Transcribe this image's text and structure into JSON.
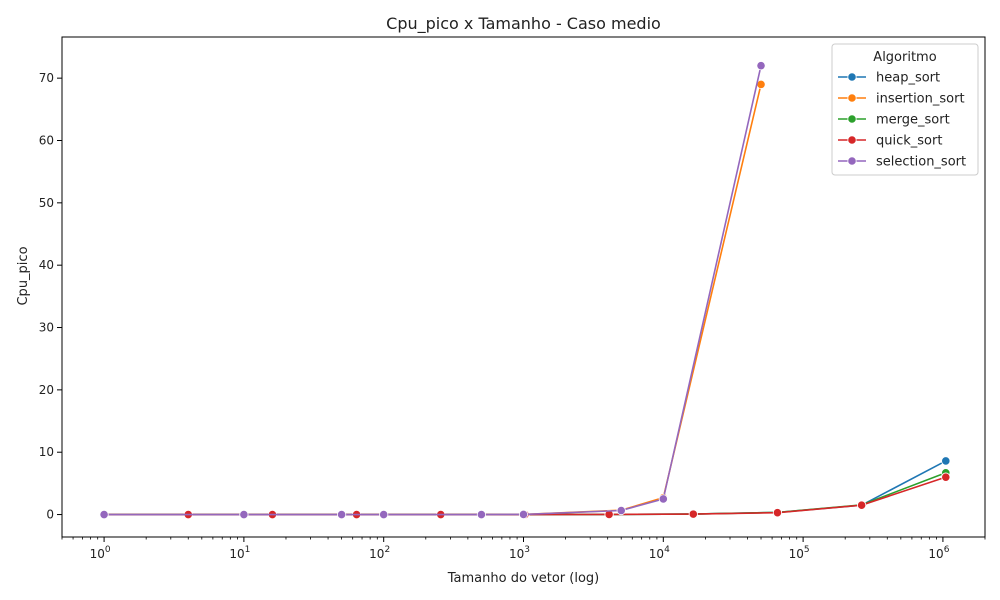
{
  "chart_data": {
    "type": "line",
    "title": "Cpu_pico x Tamanho - Caso medio",
    "xlabel": "Tamanho do vetor (log)",
    "ylabel": "Cpu_pico",
    "x_scale": "log",
    "xlim": [
      0.5,
      2000000
    ],
    "ylim": [
      -3.6,
      76.6
    ],
    "x_ticks": [
      {
        "value": 1,
        "exp": "0"
      },
      {
        "value": 10,
        "exp": "1"
      },
      {
        "value": 100,
        "exp": "2"
      },
      {
        "value": 1000,
        "exp": "3"
      },
      {
        "value": 10000,
        "exp": "4"
      },
      {
        "value": 100000,
        "exp": "5"
      },
      {
        "value": 1000000,
        "exp": "6"
      }
    ],
    "x_tick_base": "10",
    "y_ticks": [
      0,
      10,
      20,
      30,
      40,
      50,
      60,
      70
    ],
    "grid": false,
    "legend": {
      "title": "Algoritmo",
      "position": "top-right"
    },
    "series": [
      {
        "name": "heap_sort",
        "color": "#1f77b4",
        "x": [
          1,
          4,
          16,
          64,
          256,
          1024,
          4096,
          16384,
          65536,
          262144,
          1048576
        ],
        "y": [
          0,
          0,
          0,
          0,
          0,
          0,
          0.02,
          0.08,
          0.35,
          1.5,
          8.6
        ]
      },
      {
        "name": "insertion_sort",
        "color": "#ff7f0e",
        "x": [
          1,
          10,
          50,
          100,
          500,
          1000,
          5000,
          10000,
          50000
        ],
        "y": [
          0,
          0,
          0,
          0,
          0,
          0.02,
          0.7,
          2.7,
          69
        ]
      },
      {
        "name": "merge_sort",
        "color": "#2ca02c",
        "x": [
          1,
          4,
          16,
          64,
          256,
          1024,
          4096,
          16384,
          65536,
          262144,
          1048576
        ],
        "y": [
          0,
          0,
          0,
          0,
          0,
          0,
          0.02,
          0.08,
          0.35,
          1.55,
          6.7
        ]
      },
      {
        "name": "quick_sort",
        "color": "#d62728",
        "x": [
          1,
          4,
          16,
          64,
          256,
          1024,
          4096,
          16384,
          65536,
          262144,
          1048576
        ],
        "y": [
          0,
          0,
          0,
          0,
          0,
          0,
          0.02,
          0.07,
          0.3,
          1.5,
          6.0
        ]
      },
      {
        "name": "selection_sort",
        "color": "#9467bd",
        "x": [
          1,
          10,
          50,
          100,
          500,
          1000,
          5000,
          10000,
          50000
        ],
        "y": [
          0,
          0,
          0,
          0,
          0,
          0.02,
          0.65,
          2.5,
          72
        ]
      }
    ]
  }
}
